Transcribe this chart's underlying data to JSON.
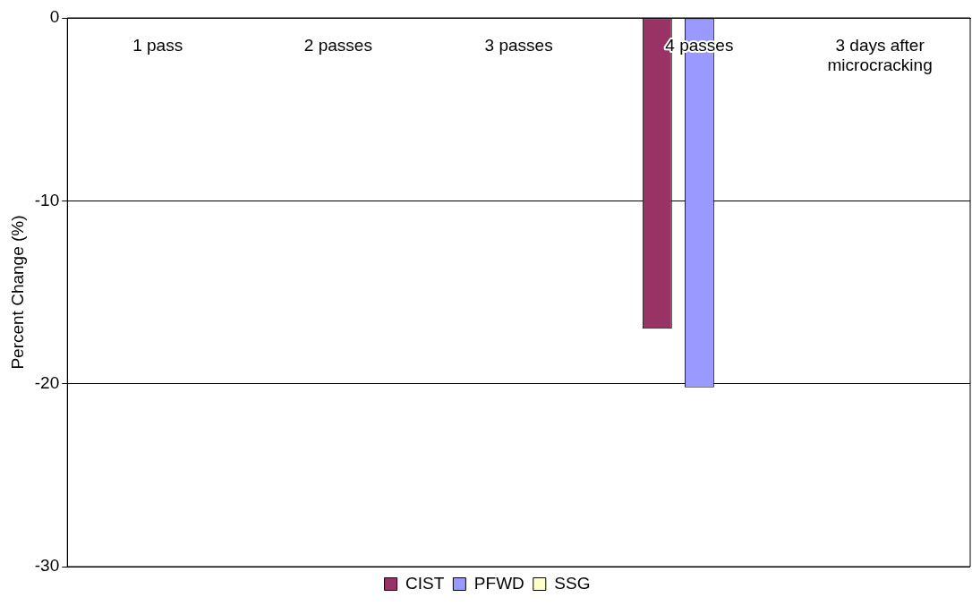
{
  "chart_data": {
    "type": "bar",
    "ylabel": "Percent Change (%)",
    "categories": [
      "1 pass",
      "2 passes",
      "3 passes",
      "4 passes",
      "3 days after microcracking"
    ],
    "series": [
      {
        "name": "CIST",
        "color": "#993366",
        "values": [
          null,
          null,
          null,
          -17,
          null
        ]
      },
      {
        "name": "PFWD",
        "color": "#9999ff",
        "values": [
          null,
          null,
          null,
          -20.2,
          null
        ]
      },
      {
        "name": "SSG",
        "color": "#ffffcc",
        "values": [
          null,
          null,
          null,
          null,
          null
        ]
      }
    ],
    "ylim": [
      -30,
      0
    ],
    "yticks": [
      -30,
      -20,
      -10,
      0
    ],
    "grid": "y",
    "legend": "bottom"
  }
}
